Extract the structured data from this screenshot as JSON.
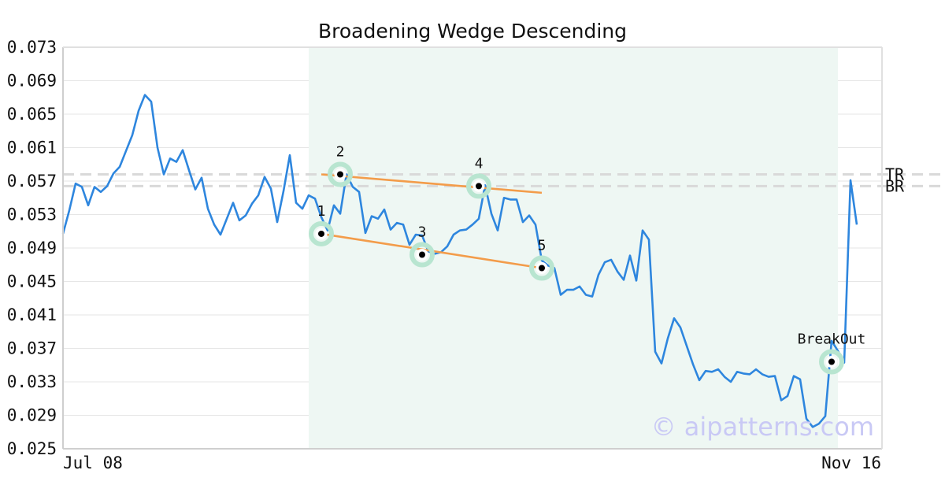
{
  "chart_data": {
    "type": "line",
    "title": "Broadening Wedge Descending",
    "xlabel": "",
    "ylabel": "",
    "x_tick_labels": [
      "Jul 08",
      "Nov 16"
    ],
    "x_range": [
      0,
      130
    ],
    "ylim": [
      0.025,
      0.073
    ],
    "y_ticks": [
      0.025,
      0.029,
      0.033,
      0.037,
      0.041,
      0.045,
      0.049,
      0.053,
      0.057,
      0.061,
      0.065,
      0.069,
      0.073
    ],
    "y_tick_labels": [
      "0.025",
      "0.029",
      "0.033",
      "0.037",
      "0.041",
      "0.045",
      "0.049",
      "0.053",
      "0.057",
      "0.061",
      "0.065",
      "0.069",
      "0.073"
    ],
    "grid": "horizontal",
    "series": [
      {
        "color": "#2e86de",
        "values": [
          0.0507,
          0.0535,
          0.0567,
          0.0563,
          0.0541,
          0.0563,
          0.0557,
          0.0564,
          0.0579,
          0.0587,
          0.0606,
          0.0625,
          0.0654,
          0.0673,
          0.0665,
          0.061,
          0.0578,
          0.0597,
          0.0593,
          0.0607,
          0.0583,
          0.056,
          0.0574,
          0.0537,
          0.0518,
          0.0506,
          0.0525,
          0.0544,
          0.0523,
          0.0529,
          0.0543,
          0.0553,
          0.0575,
          0.0561,
          0.0521,
          0.0558,
          0.0601,
          0.0544,
          0.0537,
          0.0553,
          0.0549,
          0.0527,
          0.0511,
          0.0541,
          0.0531,
          0.0578,
          0.0563,
          0.0557,
          0.0508,
          0.0528,
          0.0525,
          0.0536,
          0.0512,
          0.052,
          0.0518,
          0.0494,
          0.0506,
          0.0505,
          0.0486,
          0.0483,
          0.0485,
          0.0492,
          0.0506,
          0.0511,
          0.0512,
          0.0518,
          0.0525,
          0.0565,
          0.0531,
          0.0511,
          0.055,
          0.0548,
          0.0548,
          0.0521,
          0.0529,
          0.0518,
          0.0475,
          0.0469,
          0.0466,
          0.0434,
          0.044,
          0.044,
          0.0444,
          0.0434,
          0.0432,
          0.0458,
          0.0473,
          0.0476,
          0.0462,
          0.0452,
          0.0481,
          0.0451,
          0.0511,
          0.05,
          0.0366,
          0.0352,
          0.0382,
          0.0406,
          0.0395,
          0.0373,
          0.0351,
          0.0332,
          0.0343,
          0.0342,
          0.0345,
          0.0336,
          0.033,
          0.0342,
          0.034,
          0.0339,
          0.0345,
          0.0339,
          0.0336,
          0.0337,
          0.0308,
          0.0313,
          0.0337,
          0.0333,
          0.0286,
          0.0276,
          0.028,
          0.0289,
          0.0379,
          0.0367,
          0.0353,
          0.0571,
          0.0518
        ]
      }
    ],
    "pattern_region": {
      "x_start": 39,
      "x_end": 123,
      "color": "#eef7f3"
    },
    "pattern_points": [
      {
        "label": "1",
        "x": 41,
        "y": 0.0507
      },
      {
        "label": "2",
        "x": 44,
        "y": 0.0578
      },
      {
        "label": "3",
        "x": 57,
        "y": 0.0482
      },
      {
        "label": "4",
        "x": 66,
        "y": 0.0564
      },
      {
        "label": "5",
        "x": 76,
        "y": 0.0466
      },
      {
        "label": "BreakOut",
        "x": 122,
        "y": 0.0354
      }
    ],
    "trend_lines": [
      {
        "from": [
          41,
          0.0578
        ],
        "to": [
          76,
          0.0556
        ],
        "color": "#f39c4a"
      },
      {
        "from": [
          41,
          0.0507
        ],
        "to": [
          76,
          0.0466
        ],
        "color": "#f39c4a"
      }
    ],
    "hlines": [
      {
        "label": "TR",
        "y": 0.0578
      },
      {
        "label": "BR",
        "y": 0.0564
      }
    ],
    "watermark": "© aipatterns.com"
  }
}
